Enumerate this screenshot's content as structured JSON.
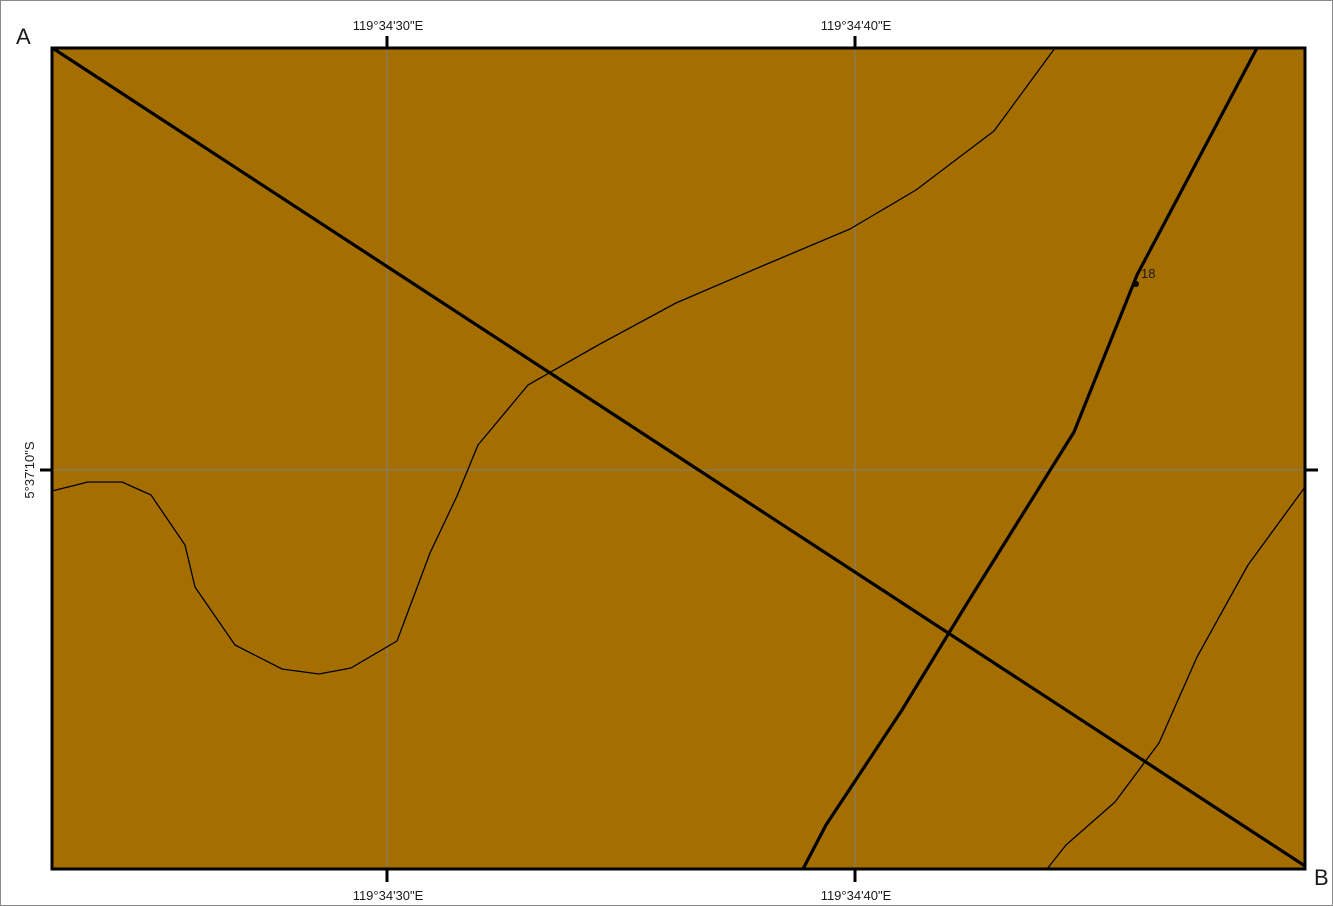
{
  "map": {
    "corner_labels": {
      "start": "A",
      "end": "B"
    },
    "coordinates": {
      "lon_left": "119°34'30\"E",
      "lon_right": "119°34'40\"E",
      "lat": "5°37'10\"S"
    },
    "point_label": "18",
    "colors": {
      "fill": "#a46f00",
      "border": "#000000",
      "grid": "#808080",
      "frame": "#8a8a8a"
    }
  }
}
